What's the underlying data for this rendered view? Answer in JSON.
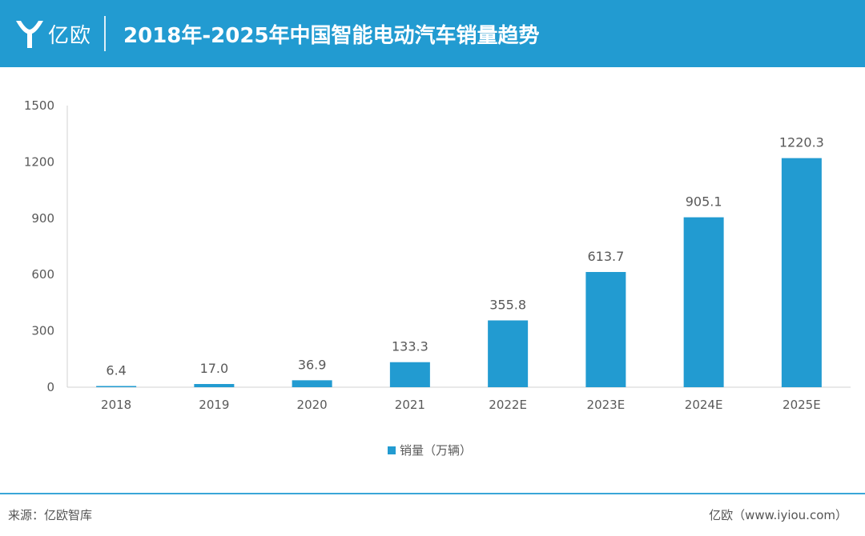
{
  "header": {
    "logo_text": "亿欧",
    "title": "2018年-2025年中国智能电动汽车销量趋势",
    "background_color": "#229bd1"
  },
  "chart_data": {
    "type": "bar",
    "title": "2018年-2025年中国智能电动汽车销量趋势",
    "categories": [
      "2018",
      "2019",
      "2020",
      "2021",
      "2022E",
      "2023E",
      "2024E",
      "2025E"
    ],
    "series": [
      {
        "name": "销量（万辆）",
        "values": [
          6.4,
          17.0,
          36.9,
          133.3,
          355.8,
          613.7,
          905.1,
          1220.3
        ],
        "labels": [
          "6.4",
          "17.0",
          "36.9",
          "133.3",
          "355.8",
          "613.7",
          "905.1",
          "1220.3"
        ],
        "color": "#229bd1"
      }
    ],
    "yticks": [
      "0",
      "300",
      "600",
      "900",
      "1200",
      "1500"
    ],
    "ytick_values": [
      0,
      300,
      600,
      900,
      1200,
      1500
    ],
    "ylim": [
      0,
      1500
    ],
    "xlabel": "",
    "ylabel": "",
    "grid": false,
    "legend_position": "bottom-center"
  },
  "legend": {
    "label": "销量（万辆）"
  },
  "footer": {
    "source": "来源：亿欧智库",
    "brand": "亿欧（www.iyiou.com）"
  }
}
